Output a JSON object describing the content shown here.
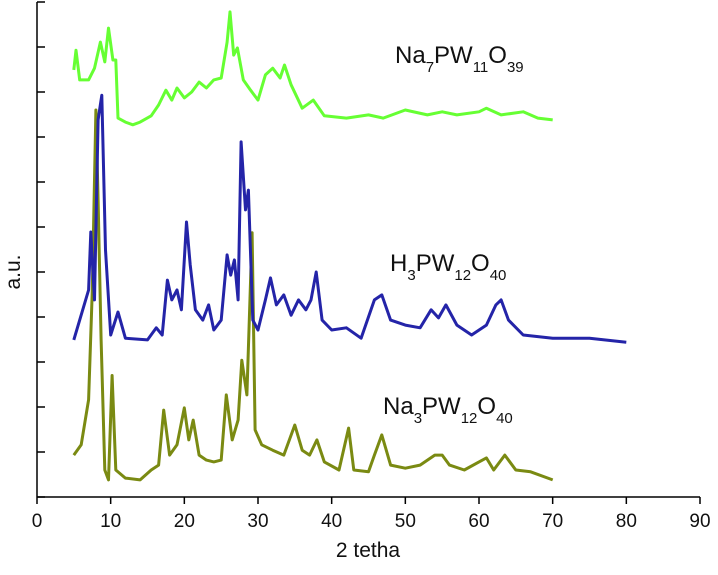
{
  "chart_data": {
    "type": "line",
    "x_label": "2 tetha",
    "y_label": "a.u.",
    "xlim": [
      0,
      90
    ],
    "xticks": [
      0,
      10,
      20,
      30,
      40,
      50,
      60,
      70,
      80,
      90
    ],
    "ylim": [
      0,
      11
    ],
    "yticks": [
      0,
      1,
      2,
      3,
      4,
      5,
      6,
      7,
      8,
      9,
      10,
      11
    ],
    "ytick_labels": false,
    "series": [
      {
        "name": "Na3PW12O40",
        "color": "#7a8a12",
        "x": [
          5,
          6,
          7,
          7.5,
          8,
          8.3,
          8.7,
          9.2,
          9.7,
          10.2,
          10.7,
          12,
          14,
          15.5,
          16.5,
          17.2,
          18,
          19,
          20,
          20.6,
          21.2,
          22,
          23,
          24,
          25,
          25.7,
          26.5,
          27.3,
          27.8,
          28.5,
          29.2,
          29.6,
          30.5,
          32,
          33.5,
          35,
          36,
          37,
          38,
          39,
          41,
          42.3,
          43,
          45,
          45.8,
          46.8,
          48,
          50,
          52,
          54,
          55,
          56,
          58,
          60,
          61,
          62,
          63.5,
          65,
          67,
          70
        ],
        "values": [
          0.93,
          1.16,
          2.16,
          4.6,
          8.6,
          6.6,
          3.5,
          0.6,
          0.38,
          2.7,
          0.6,
          0.42,
          0.38,
          0.6,
          0.71,
          1.93,
          0.93,
          1.16,
          1.98,
          1.27,
          1.71,
          0.93,
          0.82,
          0.78,
          0.82,
          2.27,
          1.27,
          1.71,
          3.04,
          2.27,
          5.87,
          1.49,
          1.16,
          1.04,
          0.93,
          1.6,
          1.04,
          0.93,
          1.27,
          0.78,
          0.6,
          1.53,
          0.6,
          0.56,
          0.93,
          1.38,
          0.71,
          0.64,
          0.71,
          0.93,
          0.93,
          0.71,
          0.6,
          0.78,
          0.87,
          0.6,
          0.93,
          0.6,
          0.56,
          0.38
        ]
      },
      {
        "name": "H3PW12O40",
        "color": "#2424a8",
        "x": [
          5,
          7,
          7.3,
          7.8,
          8.3,
          8.8,
          9.3,
          10,
          11,
          12,
          15,
          16.2,
          17,
          17.7,
          18.3,
          19,
          19.6,
          20.3,
          20.8,
          21.5,
          22.5,
          23.3,
          24,
          25,
          25.8,
          26.3,
          26.8,
          27.3,
          27.7,
          28.3,
          28.7,
          29.3,
          30,
          31,
          31.7,
          32.5,
          33.5,
          34.5,
          35.5,
          36.5,
          37.2,
          37.9,
          38.7,
          40,
          42,
          44,
          45.8,
          46.8,
          48,
          50,
          52,
          53.5,
          54.5,
          55.5,
          57,
          59,
          61,
          62.3,
          63,
          64,
          66,
          70,
          75,
          80
        ],
        "values": [
          3.49,
          4.6,
          5.89,
          4.38,
          8.38,
          8.93,
          5.49,
          3.6,
          4.11,
          3.53,
          3.49,
          3.76,
          3.6,
          4.82,
          4.38,
          4.6,
          4.16,
          6.11,
          5.16,
          4.16,
          3.93,
          4.27,
          3.71,
          3.93,
          5.38,
          4.93,
          5.27,
          4.38,
          7.89,
          6.38,
          6.82,
          3.93,
          3.71,
          4.38,
          4.87,
          4.27,
          4.49,
          4.04,
          4.38,
          4.16,
          4.38,
          5.0,
          3.93,
          3.71,
          3.76,
          3.53,
          4.38,
          4.49,
          3.93,
          3.82,
          3.76,
          4.16,
          3.98,
          4.27,
          3.82,
          3.6,
          3.82,
          4.27,
          4.38,
          3.93,
          3.6,
          3.53,
          3.53,
          3.44
        ]
      },
      {
        "name": "Na7PW11O39",
        "color": "#66ff33",
        "x": [
          5,
          5.3,
          5.8,
          7,
          7.8,
          8.6,
          9.2,
          9.7,
          10.3,
          10.7,
          11,
          12,
          13,
          14,
          15.5,
          16.5,
          17.5,
          18.3,
          19,
          20,
          21,
          22,
          23,
          24,
          25,
          25.8,
          26.2,
          26.7,
          27.2,
          28,
          29,
          30,
          31,
          32,
          33,
          33.6,
          34.5,
          36,
          37.5,
          39,
          42,
          45,
          47,
          50,
          53,
          55,
          57,
          60,
          61,
          63,
          66,
          68,
          70
        ],
        "values": [
          9.49,
          9.93,
          9.27,
          9.27,
          9.53,
          10.11,
          9.67,
          10.42,
          9.71,
          9.71,
          8.42,
          8.33,
          8.27,
          8.33,
          8.47,
          8.71,
          9.04,
          8.82,
          9.09,
          8.87,
          9.0,
          9.22,
          9.09,
          9.27,
          9.31,
          10.11,
          10.78,
          9.82,
          9.98,
          9.27,
          9.04,
          8.82,
          9.38,
          9.53,
          9.31,
          9.6,
          9.16,
          8.64,
          8.82,
          8.47,
          8.42,
          8.49,
          8.42,
          8.6,
          8.49,
          8.56,
          8.49,
          8.56,
          8.64,
          8.49,
          8.56,
          8.42,
          8.38
        ]
      }
    ]
  }
}
